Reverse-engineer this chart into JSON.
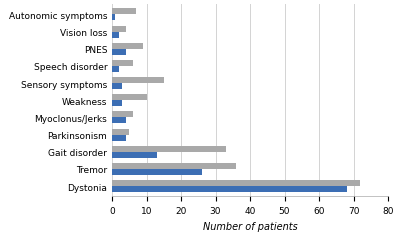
{
  "categories": [
    "Dystonia",
    "Tremor",
    "Gait disorder",
    "Parkinsonism",
    "Myoclonus/Jerks",
    "Weakness",
    "Sensory symptoms",
    "Speech disorder",
    "PNES",
    "Vision loss",
    "Autonomic symptoms"
  ],
  "final_exam": [
    72,
    36,
    33,
    5,
    6,
    10,
    15,
    6,
    9,
    4,
    7
  ],
  "initial_exam": [
    68,
    26,
    13,
    4,
    4,
    3,
    3,
    2,
    4,
    2,
    1
  ],
  "final_color": "#a9a9a9",
  "initial_color": "#3c6eb4",
  "xlabel": "Number of patients",
  "xlim": [
    0,
    80
  ],
  "xticks": [
    0,
    10,
    20,
    30,
    40,
    50,
    60,
    70,
    80
  ],
  "background_color": "#ffffff",
  "grid_color": "#d3d3d3",
  "bar_height": 0.35,
  "axis_fontsize": 7,
  "tick_fontsize": 6.5,
  "legend_fontsize": 6.5
}
